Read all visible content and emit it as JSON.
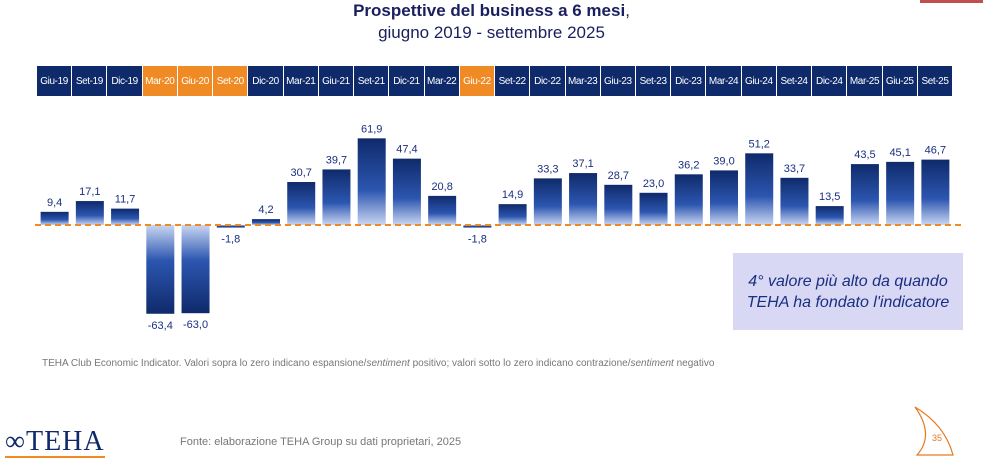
{
  "chart_data": {
    "type": "bar",
    "title": "Prospettive del business a 6 mesi",
    "subtitle": "giugno 2019 - settembre 2025",
    "categories": [
      "Giu-19",
      "Set-19",
      "Dic-19",
      "Mar-20",
      "Giu-20",
      "Set-20",
      "Dic-20",
      "Mar-21",
      "Giu-21",
      "Set-21",
      "Dic-21",
      "Mar-22",
      "Giu-22",
      "Set-22",
      "Dic-22",
      "Mar-23",
      "Giu-23",
      "Set-23",
      "Dic-23",
      "Mar-24",
      "Giu-24",
      "Set-24",
      "Dic-24",
      "Mar-25",
      "Giu-25",
      "Set-25"
    ],
    "highlighted_categories": [
      "Mar-20",
      "Giu-20",
      "Set-20",
      "Giu-22"
    ],
    "values": [
      9.4,
      17.1,
      11.7,
      -63.4,
      -63.0,
      -1.8,
      4.2,
      30.7,
      39.7,
      61.9,
      47.4,
      20.8,
      -1.8,
      14.9,
      33.3,
      37.1,
      28.7,
      23.0,
      36.2,
      39.0,
      51.2,
      33.7,
      13.5,
      43.5,
      45.1,
      46.7
    ],
    "value_labels": [
      "9,4",
      "17,1",
      "11,7",
      "-63,4",
      "-63,0",
      "-1,8",
      "4,2",
      "30,7",
      "39,7",
      "61,9",
      "47,4",
      "20,8",
      "-1,8",
      "14,9",
      "33,3",
      "37,1",
      "28,7",
      "23,0",
      "36,2",
      "39,0",
      "51,2",
      "33,7",
      "13,5",
      "43,5",
      "45,1",
      "46,7"
    ],
    "grid": false,
    "zero_line": "dashed",
    "colors": {
      "bar": "#0f2a6b",
      "highlight": "#f08a24",
      "zero_line": "#f08a24"
    }
  },
  "callout": "4° valore più alto da quando TEHA ha fondato l'indicatore",
  "note_parts": [
    "TEHA Club Economic Indicator. Valori sopra lo zero indicano espansione/",
    "sentiment",
    " positivo; valori sotto lo zero indicano contrazione/",
    "sentiment",
    " negativo"
  ],
  "source": "Fonte: elaborazione TEHA Group su dati proprietari, 2025",
  "logo": "TEHA",
  "page_number": "35"
}
